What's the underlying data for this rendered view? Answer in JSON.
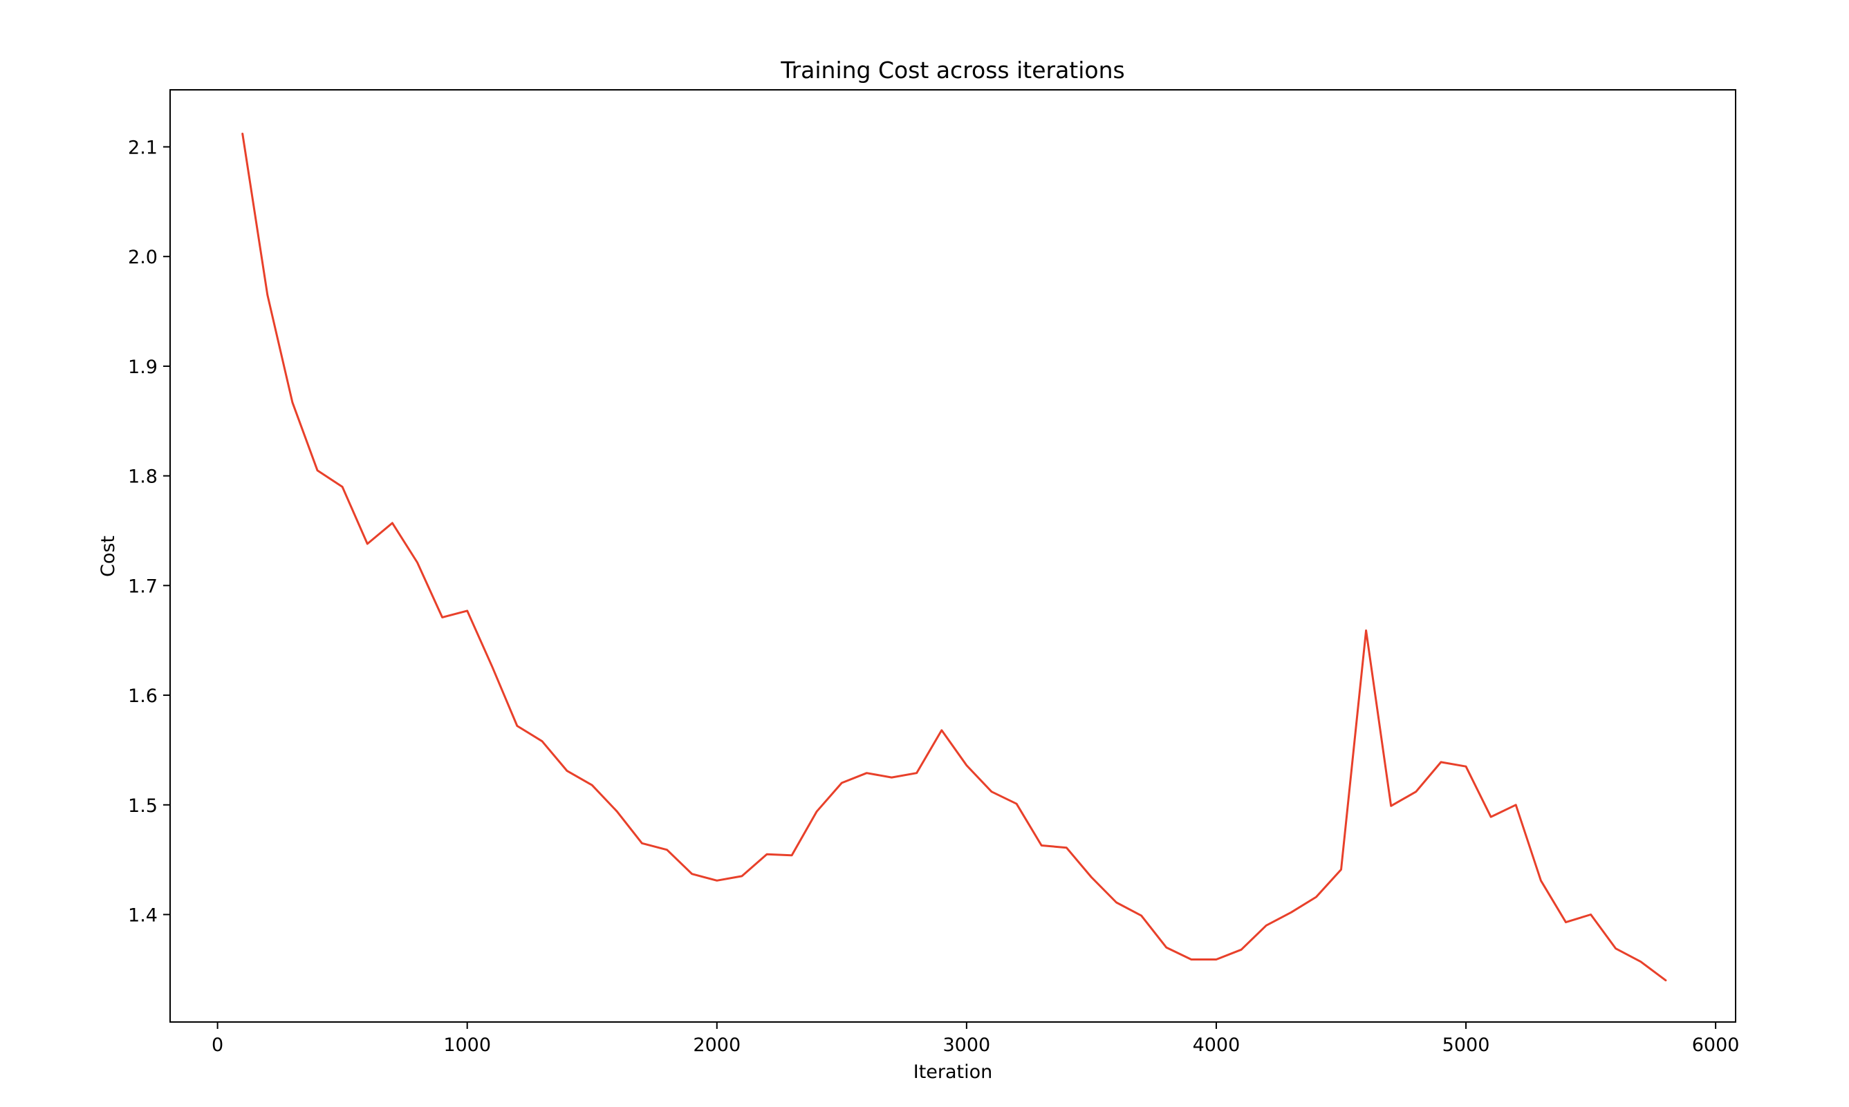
{
  "chart_data": {
    "type": "line",
    "title": "Training Cost across iterations",
    "xlabel": "Iteration",
    "ylabel": "Cost",
    "xlim": [
      -190,
      6080
    ],
    "ylim": [
      1.302,
      2.152
    ],
    "xticks": [
      0,
      1000,
      2000,
      3000,
      4000,
      5000,
      6000
    ],
    "xtick_labels": [
      "0",
      "1000",
      "2000",
      "3000",
      "4000",
      "5000",
      "6000"
    ],
    "yticks": [
      1.4,
      1.5,
      1.6,
      1.7,
      1.8,
      1.9,
      2.0,
      2.1
    ],
    "ytick_labels": [
      "1.4",
      "1.5",
      "1.6",
      "1.7",
      "1.8",
      "1.9",
      "2.0",
      "2.1"
    ],
    "grid": false,
    "legend": "none",
    "line_color": "#e8402a",
    "series": [
      {
        "x": [
          100,
          200,
          300,
          400,
          500,
          600,
          700,
          800,
          900,
          1000,
          1100,
          1200,
          1300,
          1400,
          1500,
          1600,
          1700,
          1800,
          1900,
          2000,
          2100,
          2200,
          2300,
          2400,
          2500,
          2600,
          2700,
          2800,
          2900,
          3000,
          3100,
          3200,
          3300,
          3400,
          3500,
          3600,
          3700,
          3800,
          3900,
          4000,
          4100,
          4200,
          4300,
          4400,
          4500,
          4600,
          4700,
          4800,
          4900,
          5000,
          5100,
          5200,
          5300,
          5400,
          5500,
          5600,
          5700,
          5800
        ],
        "values": [
          2.112,
          1.965,
          1.867,
          1.805,
          1.79,
          1.738,
          1.757,
          1.721,
          1.671,
          1.677,
          1.626,
          1.572,
          1.558,
          1.531,
          1.518,
          1.494,
          1.465,
          1.459,
          1.437,
          1.431,
          1.435,
          1.455,
          1.454,
          1.494,
          1.52,
          1.529,
          1.525,
          1.529,
          1.568,
          1.536,
          1.512,
          1.501,
          1.463,
          1.461,
          1.434,
          1.411,
          1.399,
          1.37,
          1.359,
          1.359,
          1.368,
          1.39,
          1.402,
          1.416,
          1.441,
          1.659,
          1.499,
          1.512,
          1.539,
          1.535,
          1.489,
          1.5,
          1.431,
          1.393,
          1.4,
          1.369,
          1.357,
          1.34
        ]
      }
    ]
  }
}
